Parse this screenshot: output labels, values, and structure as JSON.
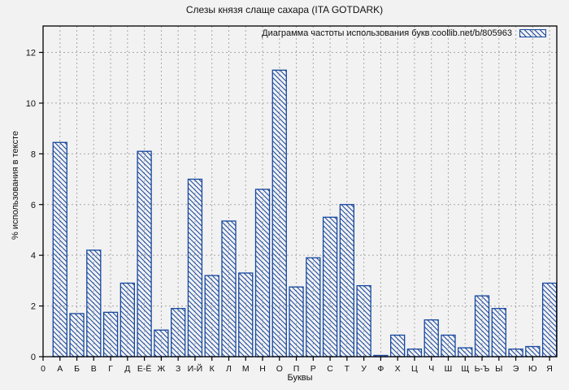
{
  "window": {
    "title": "Слезы князя слаще сахара (ITA GOTDARK)"
  },
  "chart_data": {
    "type": "bar",
    "title": "Слезы князя слаще сахара (ITA GOTDARK)",
    "legend": "Диаграмма частоты использования букв coollib.net/b/805963",
    "legend_position": "top-right-inside",
    "xlabel": "Буквы",
    "ylabel": "% использования в тексте",
    "x_origin_label": "0",
    "categories": [
      "А",
      "Б",
      "В",
      "Г",
      "Д",
      "Е-Ё",
      "Ж",
      "З",
      "И-Й",
      "К",
      "Л",
      "М",
      "Н",
      "О",
      "П",
      "Р",
      "С",
      "Т",
      "У",
      "Ф",
      "Х",
      "Ц",
      "Ч",
      "Ш",
      "Щ",
      "Ь-Ъ",
      "Ы",
      "Э",
      "Ю",
      "Я"
    ],
    "values": [
      8.45,
      1.7,
      4.2,
      1.75,
      2.9,
      8.1,
      1.05,
      1.9,
      7.0,
      3.2,
      5.35,
      3.3,
      6.6,
      11.3,
      2.75,
      3.9,
      5.5,
      6.0,
      2.8,
      0.05,
      0.85,
      0.3,
      1.45,
      0.85,
      0.35,
      2.4,
      1.9,
      0.3,
      0.4,
      2.9
    ],
    "yticks": [
      0,
      2,
      4,
      6,
      8,
      10,
      12
    ],
    "ylim": [
      0,
      13
    ],
    "grid": true,
    "bar_style": "diagonal-hatch",
    "colors": {
      "bar": "#16479e",
      "grid": "#a8a8a8",
      "axis": "#000000",
      "background": "#f2f2f2",
      "text": "#111111"
    }
  }
}
